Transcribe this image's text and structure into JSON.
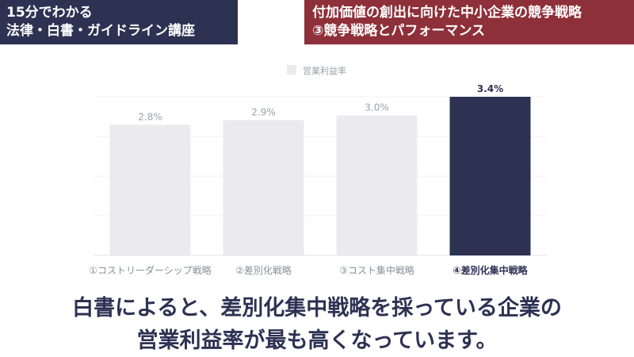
{
  "header": {
    "left_lines": [
      "15分でわかる",
      "法律・白書・ガイドライン講座"
    ],
    "right_lines": [
      "付加価値の創出に向けた中小企業の競争戦略",
      "③競争戦略とパフォーマンス"
    ]
  },
  "colors": {
    "left_badge": "#2d3253",
    "right_badge": "#8e3039",
    "bar_default": "#ebebee",
    "bar_highlight": "#2d3253"
  },
  "chart_data": {
    "type": "bar",
    "categories": [
      "①コストリーダーシップ戦略",
      "②差別化戦略",
      "③コスト集中戦略",
      "④差別化集中戦略"
    ],
    "series": [
      {
        "name": "営業利益率",
        "values": [
          2.8,
          2.9,
          3.0,
          3.4
        ]
      }
    ],
    "data_labels": [
      "2.8%",
      "2.9%",
      "3.0%",
      "3.4%"
    ],
    "highlight_index": 3,
    "ylim": [
      0,
      3.4
    ],
    "grid": true,
    "legend_position": "top-center"
  },
  "caption": {
    "line1": "白書によると、差別化集中戦略を採っている企業の",
    "line2": "営業利益率が最も高くなっています。"
  }
}
